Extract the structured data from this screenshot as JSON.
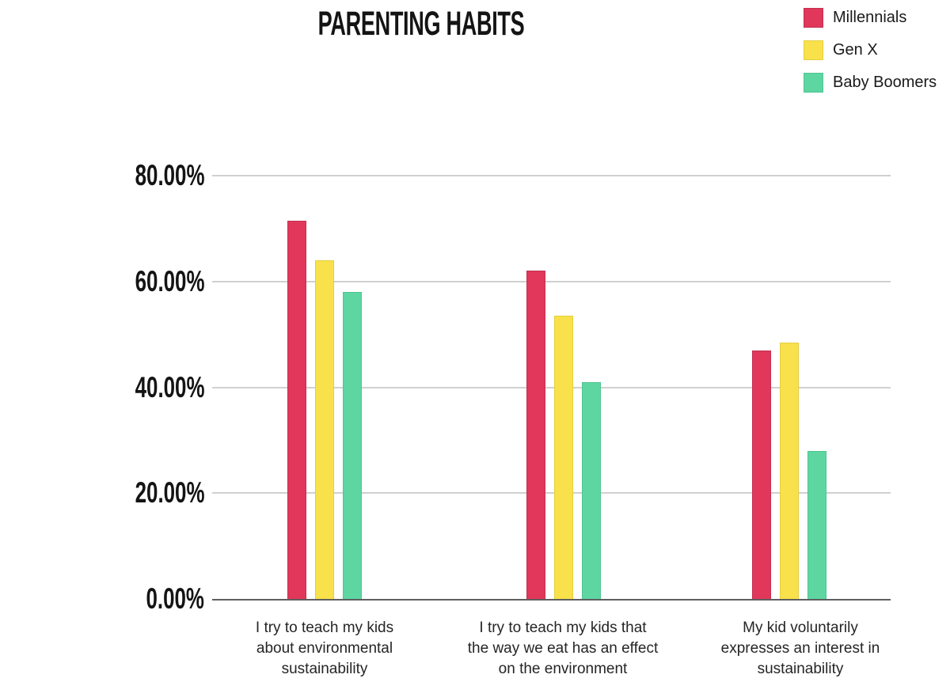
{
  "chart_data": {
    "type": "bar",
    "title": "PARENTING HABITS",
    "categories": [
      "I try to teach my kids about environmental sustainability",
      "I try to teach my kids that the way we eat has an effect on the environment",
      "My kid voluntarily expresses an interest in sustainability"
    ],
    "category_lines": [
      [
        "I try to teach my kids",
        "about environmental",
        "sustainability"
      ],
      [
        "I try to teach my kids that",
        "the way we eat has an effect",
        "on the environment"
      ],
      [
        "My kid voluntarily",
        "expresses an interest in",
        "sustainability"
      ]
    ],
    "series": [
      {
        "name": "Millennials",
        "color": "#e1375b",
        "border_color": "#c13252",
        "values": [
          71.5,
          62,
          47
        ]
      },
      {
        "name": "Gen X",
        "color": "#f8e14b",
        "border_color": "#e5ce3f",
        "values": [
          64,
          53.5,
          48.5
        ]
      },
      {
        "name": "Baby Boomers",
        "color": "#5ed6a1",
        "border_color": "#4fc591",
        "values": [
          58,
          41,
          28
        ]
      }
    ],
    "y_axis": {
      "tick_labels": [
        "80.00%",
        "60.00%",
        "40.00%",
        "20.00%",
        "0.00%"
      ],
      "tick_values": [
        80,
        60,
        40,
        20,
        0
      ],
      "ylim": [
        0,
        80
      ]
    },
    "xlabel": "",
    "ylabel": "",
    "grid": true,
    "legend_position": "top-right",
    "colors": {
      "gridline": "#d0d0d0",
      "axis_line": "#5f5f5f",
      "text": "#141414",
      "background": "#ffffff"
    }
  }
}
